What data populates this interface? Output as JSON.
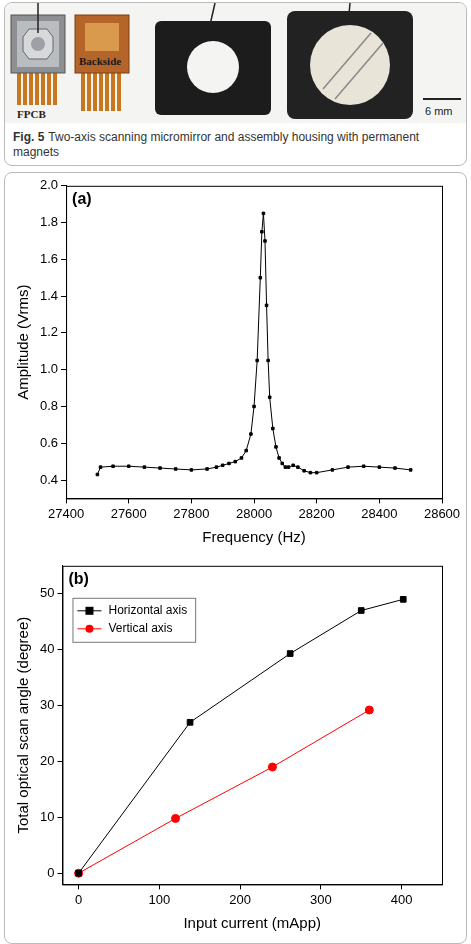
{
  "figure": {
    "labels": [
      "FPCB",
      "Backside"
    ],
    "scale_bar": "6 mm",
    "caption_label": "Fig. 5",
    "caption": "Two-axis scanning micromirror and assembly housing with permanent magnets"
  },
  "chart_data": [
    {
      "type": "line",
      "panel_label": "(a)",
      "x_label": "Frequency (Hz)",
      "y_label": "Amplitude (Vrms)",
      "x": [
        27500,
        27510,
        27550,
        27600,
        27650,
        27700,
        27750,
        27800,
        27850,
        27880,
        27900,
        27920,
        27940,
        27960,
        27975,
        27990,
        28000,
        28010,
        28020,
        28025,
        28030,
        28035,
        28040,
        28045,
        28050,
        28060,
        28070,
        28080,
        28090,
        28100,
        28110,
        28125,
        28140,
        28160,
        28180,
        28200,
        28250,
        28300,
        28350,
        28400,
        28450,
        28500
      ],
      "values": [
        0.43,
        0.47,
        0.475,
        0.475,
        0.47,
        0.465,
        0.46,
        0.455,
        0.46,
        0.47,
        0.48,
        0.49,
        0.5,
        0.52,
        0.56,
        0.65,
        0.8,
        1.05,
        1.5,
        1.75,
        1.85,
        1.7,
        1.35,
        1.05,
        0.85,
        0.68,
        0.58,
        0.52,
        0.49,
        0.47,
        0.47,
        0.48,
        0.47,
        0.45,
        0.44,
        0.44,
        0.455,
        0.47,
        0.475,
        0.47,
        0.465,
        0.455
      ],
      "color": "#000000",
      "marker": "square",
      "line_style": "solid",
      "xlim": [
        27400,
        28600
      ],
      "xticks": [
        27400,
        27600,
        27800,
        28000,
        28200,
        28400,
        28600
      ],
      "ylim": [
        0.3,
        2.0
      ],
      "yticks": [
        0.4,
        0.6,
        0.8,
        {
          "value": 1,
          "label": "1.0"
        },
        1.2,
        1.4,
        1.6,
        1.8,
        {
          "value": 2,
          "label": "2.0"
        }
      ],
      "grid": false
    },
    {
      "type": "line",
      "panel_label": "(b)",
      "x_label": "Input current (mApp)",
      "y_label": "Total optical scan angle (degree)",
      "series": [
        {
          "name": "Horizontal axis",
          "color": "#000000",
          "marker": "square",
          "line_style": "solid",
          "x": [
            0,
            138,
            262,
            350,
            402
          ],
          "values": [
            0,
            27,
            39.3,
            47,
            49
          ]
        },
        {
          "name": "Vertical axis",
          "color": "#ff0000",
          "marker": "circle",
          "line_style": "solid",
          "x": [
            0,
            120,
            240,
            360
          ],
          "values": [
            0,
            9.8,
            19,
            29.2
          ]
        }
      ],
      "xlim": [
        -20,
        450
      ],
      "xticks": [
        0,
        100,
        200,
        300,
        400
      ],
      "ylim": [
        -2,
        55
      ],
      "yticks": [
        0,
        10,
        20,
        30,
        40,
        50
      ],
      "grid": false,
      "legend": "upper left"
    }
  ]
}
